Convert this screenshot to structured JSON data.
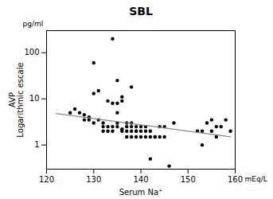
{
  "chart_data": {
    "type": "scatter",
    "title": "SBL",
    "xlabel": "Serum Na⁺",
    "ylabel": "AVP\nLogarithmic escale",
    "annotations": [
      "pg/ml",
      "mEq/L"
    ],
    "log": "y",
    "grid": false,
    "xlim": [
      120,
      160
    ],
    "xticks": [
      120,
      130,
      140,
      150,
      160
    ],
    "ylim": [
      0.3,
      300
    ],
    "yticks": [
      1,
      10,
      100
    ],
    "series": [
      {
        "type": "scatter",
        "color": "black",
        "marker": "circle",
        "x": [
          125,
          126,
          127,
          128,
          128,
          129,
          129,
          130,
          130,
          130,
          131,
          131,
          132,
          132,
          132,
          133,
          133,
          133,
          134,
          134,
          134,
          134,
          135,
          135,
          135,
          135,
          135,
          136,
          136,
          136,
          136,
          137,
          137,
          137,
          137,
          138,
          138,
          138,
          138,
          138,
          139,
          139,
          139,
          139,
          140,
          140,
          140,
          141,
          141,
          141,
          142,
          142,
          142,
          143,
          143,
          144,
          144,
          145,
          145,
          146,
          147,
          152,
          153,
          153,
          154,
          155,
          155,
          156,
          156,
          157,
          158,
          159
        ],
        "values": [
          5.0,
          6.0,
          5.0,
          3.5,
          4.5,
          3.5,
          4.0,
          3.0,
          13.0,
          60.0,
          3.5,
          15.0,
          2.0,
          2.5,
          3.0,
          2.0,
          2.5,
          9.0,
          2.0,
          2.5,
          8.0,
          200.0,
          2.5,
          3.0,
          5.0,
          8.0,
          25.0,
          2.0,
          2.2,
          9.0,
          11.0,
          1.5,
          2.0,
          2.5,
          3.0,
          1.5,
          2.0,
          2.5,
          3.0,
          18.0,
          1.5,
          2.0,
          2.5,
          2.0,
          1.5,
          2.0,
          2.5,
          1.5,
          2.0,
          2.5,
          1.5,
          2.0,
          0.5,
          1.5,
          1.5,
          1.5,
          2.5,
          1.5,
          2.5,
          0.35,
          3.0,
          2.0,
          1.0,
          2.0,
          3.0,
          2.0,
          3.5,
          1.5,
          2.5,
          2.5,
          3.5,
          2.0
        ]
      },
      {
        "type": "line",
        "color": "#888888",
        "line_style": "solid",
        "x": [
          122,
          159
        ],
        "values": [
          4.8,
          1.5
        ]
      }
    ]
  }
}
